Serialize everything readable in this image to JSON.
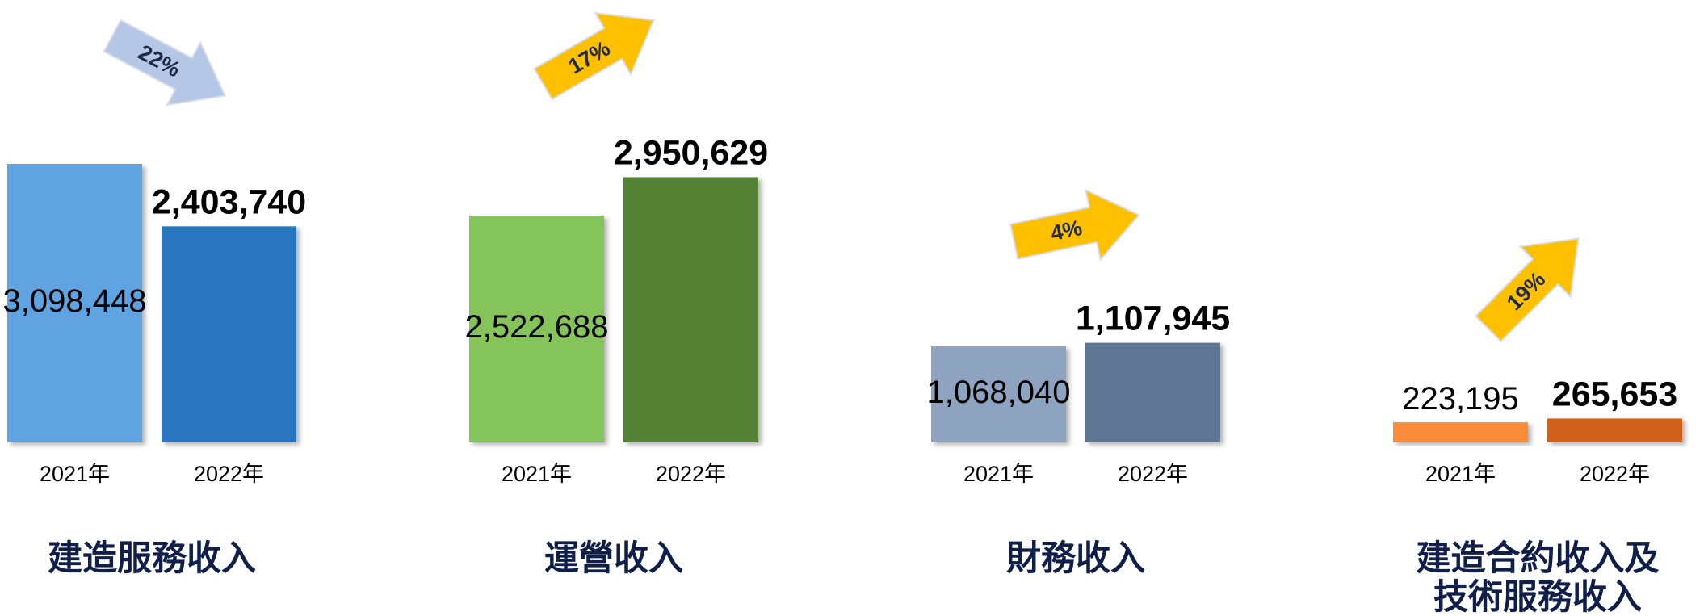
{
  "chart_data": [
    {
      "type": "bar",
      "title": [
        "建造服務收入"
      ],
      "categories": [
        "2021年",
        "2022年"
      ],
      "values": [
        3098448,
        2403740
      ],
      "value_labels": [
        "3,098,448",
        "2,403,740"
      ],
      "colors": [
        "#5ea4e0",
        "#2a75c0"
      ],
      "annotation": {
        "text": "22%",
        "color": "#b4c7e7"
      }
    },
    {
      "type": "bar",
      "title": [
        "運營收入"
      ],
      "categories": [
        "2021年",
        "2022年"
      ],
      "values": [
        2522688,
        2950629
      ],
      "value_labels": [
        "2,522,688",
        "2,950,629"
      ],
      "colors": [
        "#84c45a",
        "#548235"
      ],
      "annotation": {
        "text": "17%",
        "color": "#ffc000"
      }
    },
    {
      "type": "bar",
      "title": [
        "財務收入"
      ],
      "categories": [
        "2021年",
        "2022年"
      ],
      "values": [
        1068040,
        1107945
      ],
      "value_labels": [
        "1,068,040",
        "1,107,945"
      ],
      "colors": [
        "#8ea3bf",
        "#5f7594"
      ],
      "annotation": {
        "text": "4%",
        "color": "#ffc000"
      }
    },
    {
      "type": "bar",
      "title": [
        "建造合約收入及",
        "技術服務收入"
      ],
      "categories": [
        "2021年",
        "2022年"
      ],
      "values": [
        223195,
        265653
      ],
      "value_labels": [
        "223,195",
        "265,653"
      ],
      "colors": [
        "#f98b3a",
        "#d0621c"
      ],
      "annotation": {
        "text": "19%",
        "color": "#ffc000"
      }
    }
  ]
}
